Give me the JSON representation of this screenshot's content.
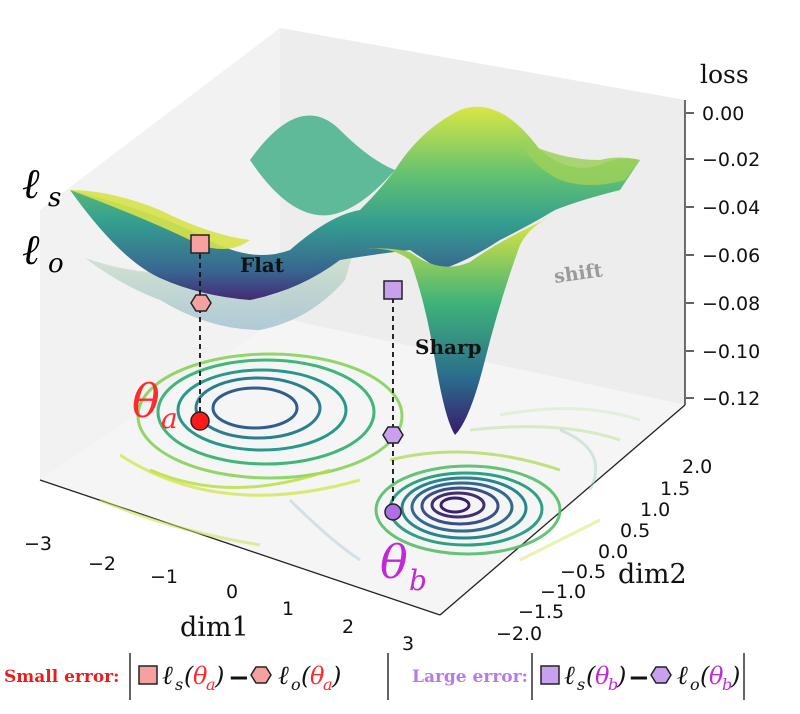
{
  "axes": {
    "z_label": "loss",
    "x_label": "dim1",
    "y_label": "dim2",
    "z_ticks": [
      "0.00",
      "−0.02",
      "−0.04",
      "−0.06",
      "−0.08",
      "−0.10",
      "−0.12"
    ],
    "x_ticks": [
      "−3",
      "−2",
      "−1",
      "0",
      "1",
      "2",
      "3"
    ],
    "y_ticks": [
      "2.0",
      "1.5",
      "1.0",
      "0.5",
      "0.0",
      "−0.5",
      "−1.0",
      "−1.5",
      "−2.0"
    ]
  },
  "surfaces": {
    "sharp_loss": "ℓ",
    "sharp_sub": "s",
    "original_loss": "ℓ",
    "original_sub": "o"
  },
  "annotations": {
    "flat": "Flat",
    "sharp": "Sharp",
    "shift": "shift"
  },
  "points": {
    "theta": "θ",
    "a": "a",
    "b": "b"
  },
  "legend": {
    "small_error": "Small error:",
    "large_error": "Large error:",
    "small_expr_left": "ℓ",
    "s": "s",
    "o": "o",
    "theta": "θ",
    "a": "a",
    "b": "b",
    "minus": "−"
  },
  "colors": {
    "theta_a": "#ff2a2a",
    "theta_b": "#c028d8",
    "small_error": "#e81e1e",
    "large_error": "#b77be8",
    "marker_a_fill": "#f6a0a0",
    "marker_b_fill": "#c9a0f0",
    "surface_high": "#f4ea3a",
    "surface_mid": "#2a9a8a",
    "surface_low": "#3b1f6e"
  },
  "icons": {
    "square_marker": "square-marker-icon",
    "hexagon_marker": "hexagon-marker-icon"
  }
}
